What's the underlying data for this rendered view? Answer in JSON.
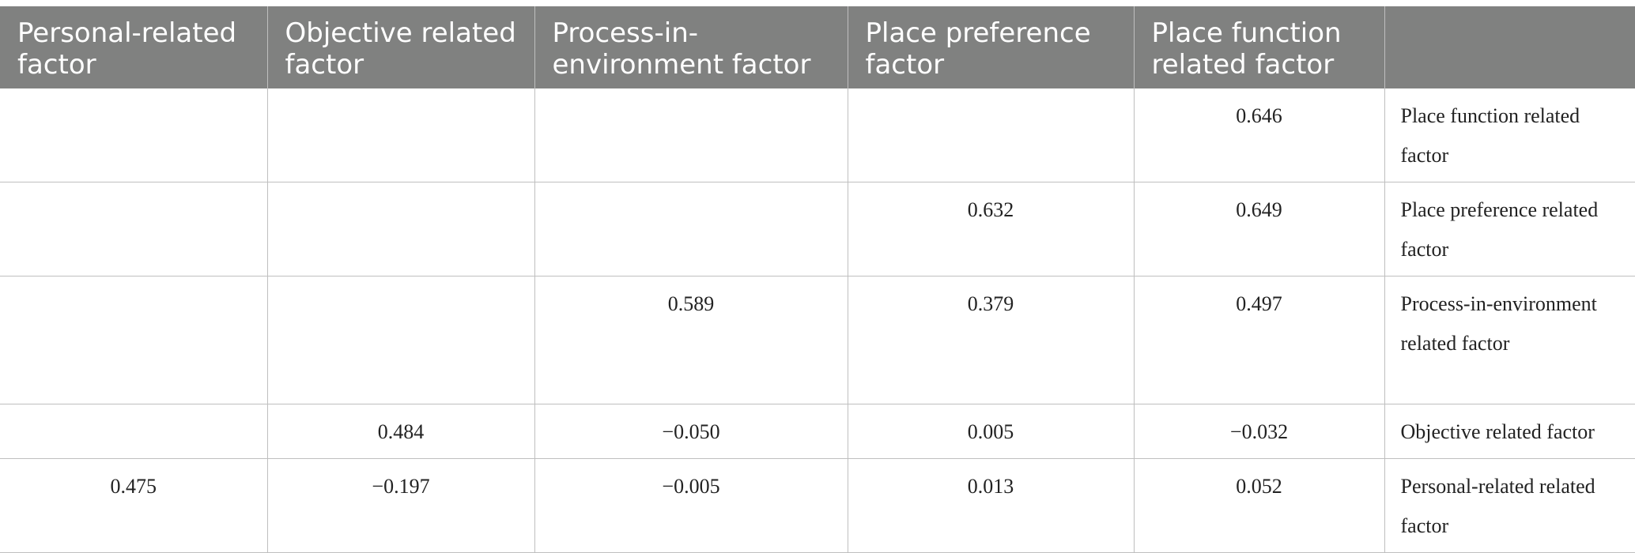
{
  "table": {
    "headers": [
      "Personal-related factor",
      "Objective related factor",
      "Process-in-environment factor",
      "Place preference factor",
      "Place function related factor",
      ""
    ],
    "rows": [
      {
        "cells": [
          "",
          "",
          "",
          "",
          "0.646"
        ],
        "label": "Place function related factor"
      },
      {
        "cells": [
          "",
          "",
          "",
          "0.632",
          "0.649"
        ],
        "label": "Place preference related factor"
      },
      {
        "cells": [
          "",
          "",
          "0.589",
          "0.379",
          "0.497"
        ],
        "label": "Process-in-environment related factor"
      },
      {
        "cells": [
          "",
          "0.484",
          "−0.050",
          "0.005",
          "−0.032"
        ],
        "label": "Objective related factor"
      },
      {
        "cells": [
          "0.475",
          "−0.197",
          "−0.005",
          "0.013",
          "0.052"
        ],
        "label": "Personal-related related factor"
      }
    ]
  }
}
